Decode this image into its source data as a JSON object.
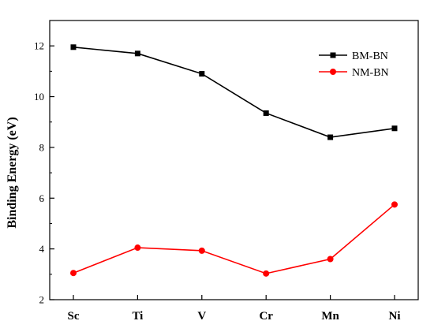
{
  "chart_data": {
    "type": "line",
    "title": "",
    "xlabel": "",
    "ylabel": "Binding Energy (eV)",
    "categories": [
      "Sc",
      "Ti",
      "V",
      "Cr",
      "Mn",
      "Ni"
    ],
    "ylim": [
      2,
      13
    ],
    "yticks": [
      2,
      4,
      6,
      8,
      10,
      12
    ],
    "grid": false,
    "legend_position": "top-right",
    "series": [
      {
        "name": "BM-BN",
        "color": "#000000",
        "marker": "square",
        "values": [
          11.95,
          11.7,
          10.9,
          9.35,
          8.4,
          8.75
        ]
      },
      {
        "name": "NM-BN",
        "color": "#ff0000",
        "marker": "circle",
        "values": [
          3.05,
          4.05,
          3.93,
          3.03,
          3.6,
          5.75
        ]
      }
    ]
  }
}
